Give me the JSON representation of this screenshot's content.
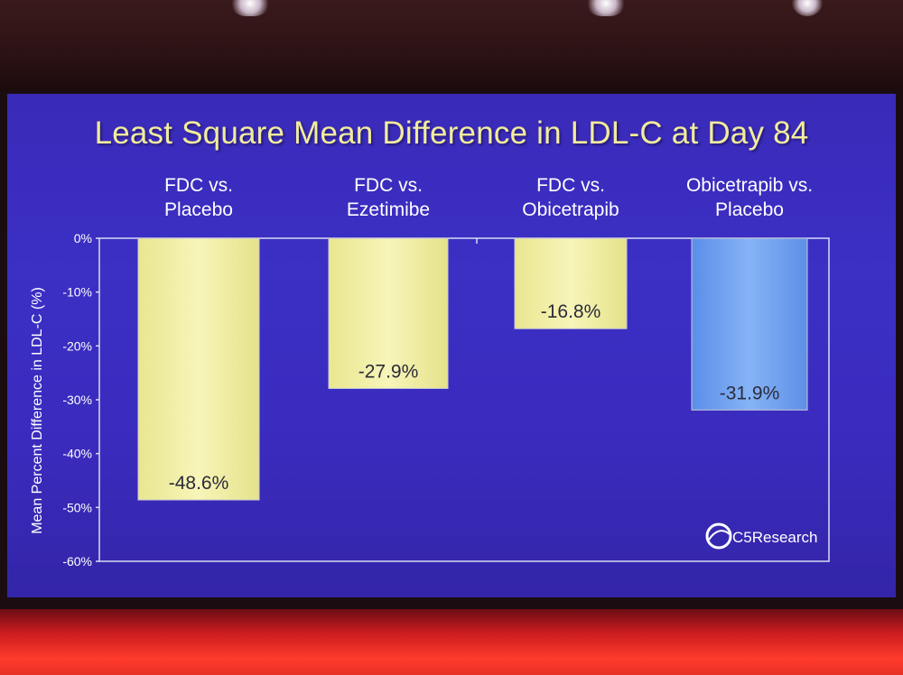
{
  "slide": {
    "title": "Least Square Mean Difference in LDL-C at Day 84",
    "logo_text": "C5Research",
    "logo_icon": "globe-icon",
    "background_color": "#3b2fc4",
    "title_color": "#f2ec9c"
  },
  "chart_data": {
    "type": "bar",
    "title": "Least Square Mean Difference in LDL-C at Day 84",
    "ylabel": "Mean Percent Difference in LDL-C (%)",
    "xlabel": "",
    "ylim": [
      -60,
      0
    ],
    "y_ticks": [
      0,
      -10,
      -20,
      -30,
      -40,
      -50,
      -60
    ],
    "y_tick_labels": [
      "0%",
      "-10%",
      "-20%",
      "-30%",
      "-40%",
      "-50%",
      "-60%"
    ],
    "categories": [
      {
        "line1": "FDC vs.",
        "line2": "Placebo"
      },
      {
        "line1": "FDC vs.",
        "line2": "Ezetimibe"
      },
      {
        "line1": "FDC vs.",
        "line2": "Obicetrapib"
      },
      {
        "line1": "Obicetrapib vs.",
        "line2": "Placebo"
      }
    ],
    "values": [
      -48.6,
      -27.9,
      -16.8,
      -31.9
    ],
    "value_labels": [
      "-48.6%",
      "-27.9%",
      "-16.8%",
      "-31.9%"
    ],
    "bar_colors": [
      "#f3f1a6",
      "#f3f1a6",
      "#f3f1a6",
      "#6f9ff0"
    ],
    "grid": false,
    "legend": "none"
  }
}
